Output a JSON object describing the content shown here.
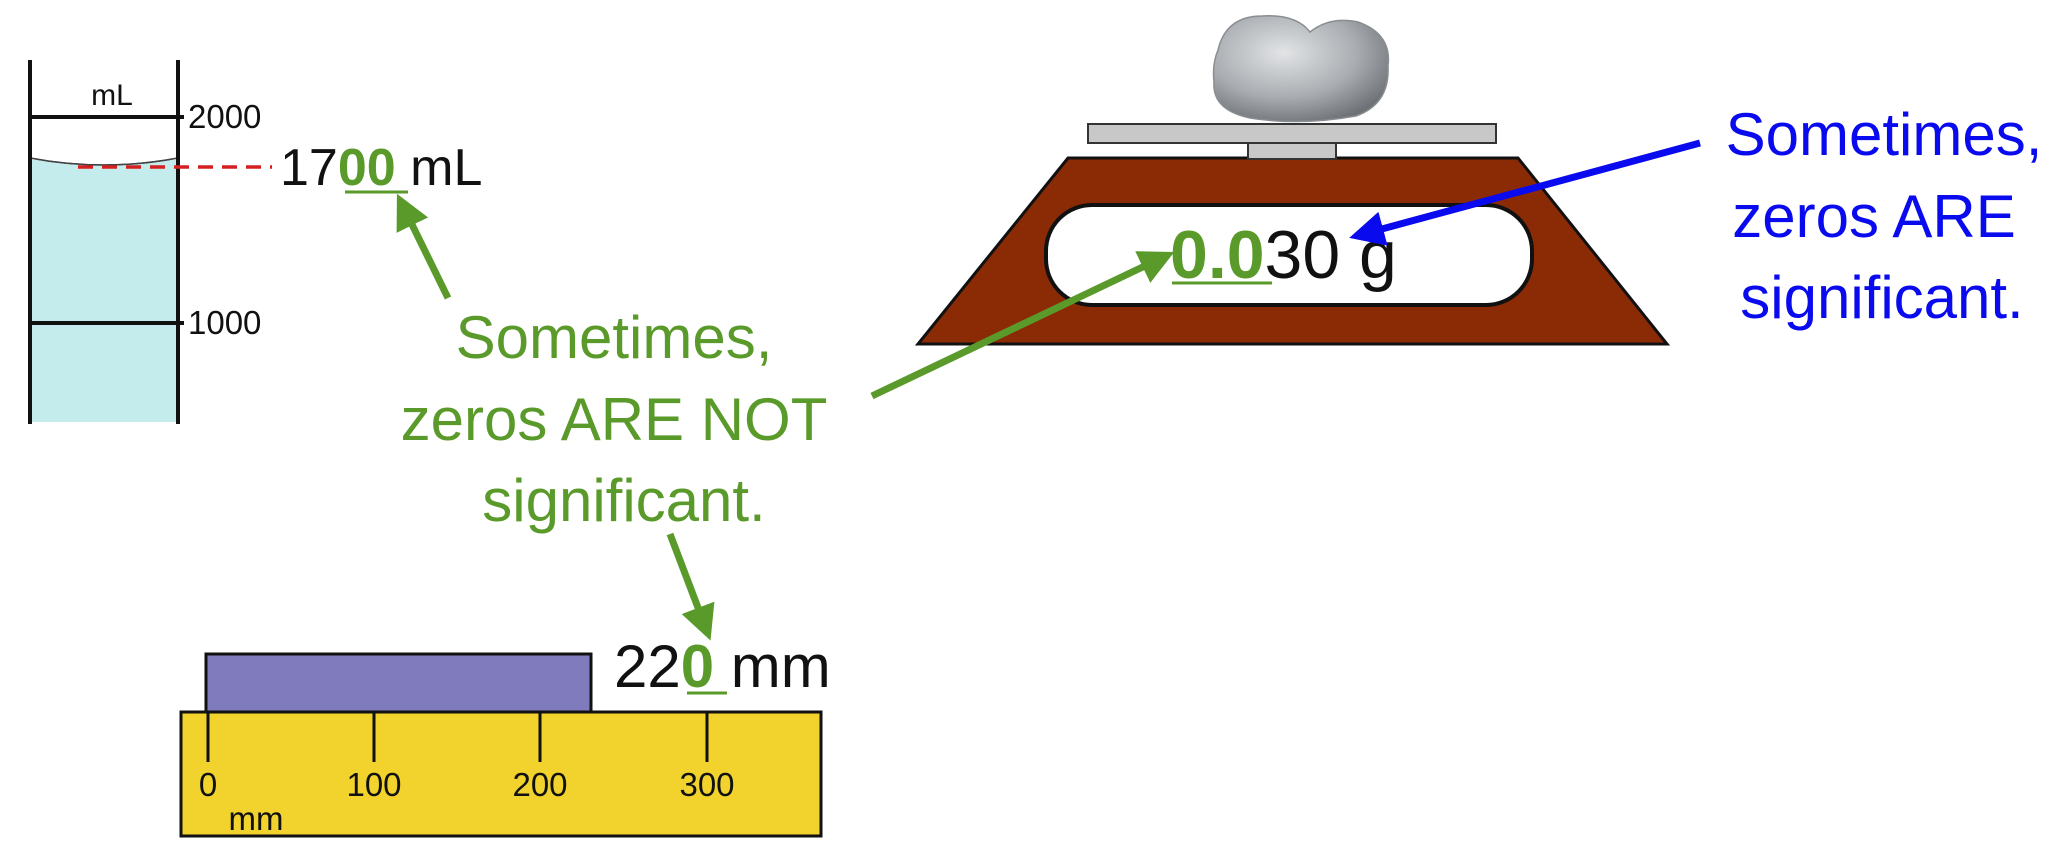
{
  "cylinder": {
    "unit_label": "mL",
    "tick_top": "2000",
    "tick_bottom": "1000",
    "reading_prefix": "17",
    "reading_zeros": "00",
    "reading_unit": " mL"
  },
  "scale": {
    "reading_zeros": "0.0",
    "reading_rest": "30 g"
  },
  "ruler": {
    "unit_label": "mm",
    "ticks": [
      "0",
      "100",
      "200",
      "300"
    ],
    "reading_prefix": "22",
    "reading_zeros": "0",
    "reading_unit": " mm"
  },
  "callouts": {
    "not_significant": [
      "Sometimes,",
      "zeros ARE NOT",
      "significant."
    ],
    "significant": [
      "Sometimes,",
      "zeros ARE",
      "significant."
    ]
  },
  "colors": {
    "green": "#5a9a2a",
    "blue": "#0a0aee",
    "red_dash": "#d42020",
    "liquid": "#c4ecec",
    "scale_body": "#8b2b06",
    "block": "#7f7bbd",
    "ruler": "#f2d32d"
  }
}
